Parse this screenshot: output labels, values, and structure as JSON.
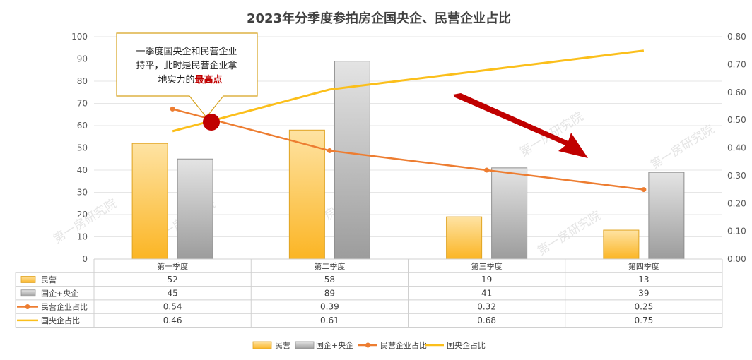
{
  "chart_data": {
    "type": "bar",
    "title": "2023年分季度参拍房企国央企、民营企业占比",
    "categories": [
      "第一季度",
      "第二季度",
      "第三季度",
      "第四季度"
    ],
    "series": [
      {
        "name": "民营",
        "kind": "bar",
        "axis": "left",
        "values": [
          52,
          58,
          19,
          13
        ],
        "color": "#fcc233",
        "labels": [
          "52",
          "58",
          "19",
          "13"
        ]
      },
      {
        "name": "国企+央企",
        "kind": "bar",
        "axis": "left",
        "values": [
          45,
          89,
          41,
          39
        ],
        "color": "#a9a9a9",
        "labels": [
          "45",
          "89",
          "41",
          "39"
        ]
      },
      {
        "name": "民营企业占比",
        "kind": "line",
        "axis": "right",
        "values": [
          0.54,
          0.39,
          0.32,
          0.25
        ],
        "color": "#ed7d31",
        "labels": [
          "0.54",
          "0.39",
          "0.32",
          "0.25"
        ]
      },
      {
        "name": "国央企占比",
        "kind": "line",
        "axis": "right",
        "values": [
          0.46,
          0.61,
          0.68,
          0.75
        ],
        "color": "#fbbf1b",
        "labels": [
          "0.46",
          "0.61",
          "0.68",
          "0.75"
        ]
      }
    ],
    "y_left": {
      "min": 0,
      "max": 100,
      "ticks": [
        "0",
        "10",
        "20",
        "30",
        "40",
        "50",
        "60",
        "70",
        "80",
        "90",
        "100"
      ]
    },
    "y_right": {
      "min": 0,
      "max": 0.8,
      "ticks": [
        "0.00",
        "0.10",
        "0.20",
        "0.30",
        "0.40",
        "0.50",
        "0.60",
        "0.70",
        "0.80"
      ]
    },
    "grid": true,
    "legend_position": "bottom",
    "data_table": true,
    "annotation": {
      "lines": [
        "一季度国央企和民营企业",
        "持平，此时是民营企业拿",
        "地实力的"
      ],
      "highlight": "最高点",
      "highlight_color": "#c00000"
    },
    "watermark": "第一房研究院"
  }
}
